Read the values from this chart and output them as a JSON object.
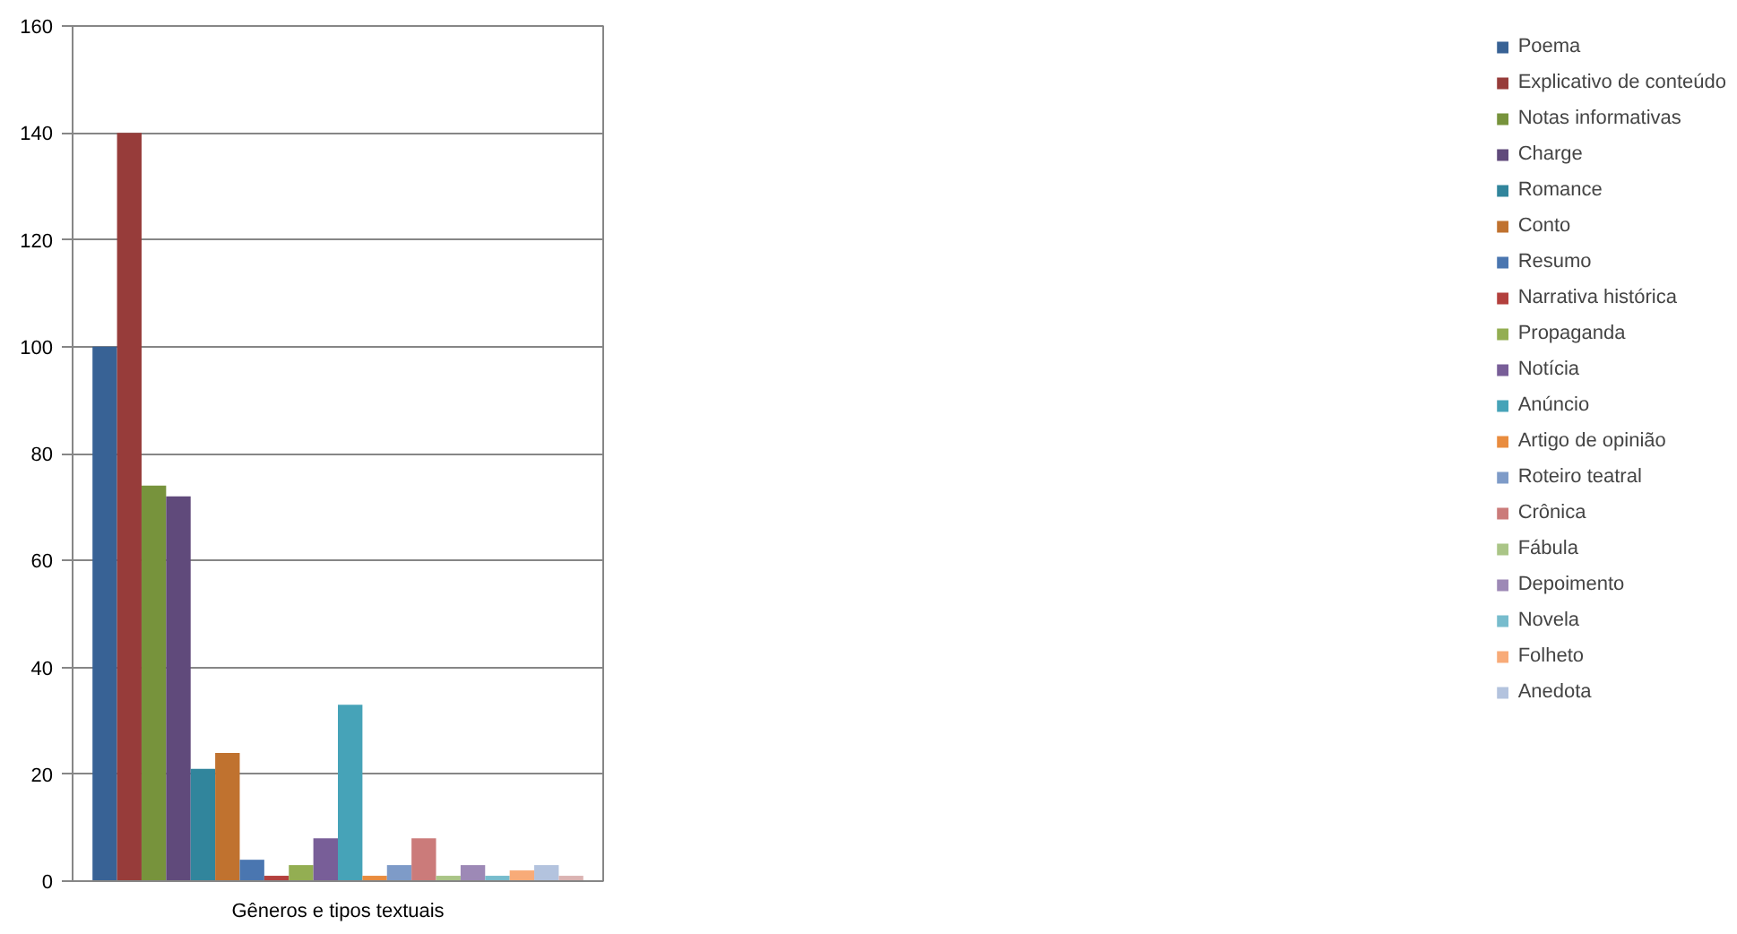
{
  "chart_data": {
    "type": "bar",
    "categories": [
      "Gêneros e tipos textuais"
    ],
    "ylim": [
      0,
      160
    ],
    "yticks": [
      0,
      20,
      40,
      60,
      80,
      100,
      120,
      140,
      160
    ],
    "grid": "y",
    "legend": "right",
    "series": [
      {
        "name": "Poema",
        "color": "#386295",
        "values": [
          100
        ]
      },
      {
        "name": "Explicativo de conteúdo",
        "color": "#973c3a",
        "values": [
          140
        ]
      },
      {
        "name": "Notas informativas",
        "color": "#77933c",
        "values": [
          74
        ]
      },
      {
        "name": "Charge",
        "color": "#604a7b",
        "values": [
          72
        ]
      },
      {
        "name": "Romance",
        "color": "#31859c",
        "values": [
          21
        ]
      },
      {
        "name": "Conto",
        "color": "#c0722f",
        "values": [
          24
        ]
      },
      {
        "name": "Resumo",
        "color": "#4a76b0",
        "values": [
          4
        ]
      },
      {
        "name": "Narrativa histórica",
        "color": "#b3403d",
        "values": [
          1
        ]
      },
      {
        "name": "Propaganda",
        "color": "#93ae52",
        "values": [
          3
        ]
      },
      {
        "name": "Notícia",
        "color": "#785e98",
        "values": [
          8
        ]
      },
      {
        "name": "Anúncio",
        "color": "#46a3b8",
        "values": [
          33
        ]
      },
      {
        "name": "Artigo de opinião",
        "color": "#e98c3e",
        "values": [
          1
        ]
      },
      {
        "name": "Roteiro teatral",
        "color": "#7e9bc8",
        "values": [
          3
        ]
      },
      {
        "name": "Crônica",
        "color": "#cb7b7a",
        "values": [
          8
        ]
      },
      {
        "name": "Fábula",
        "color": "#aac587",
        "values": [
          1
        ]
      },
      {
        "name": "Depoimento",
        "color": "#9d89b6",
        "values": [
          3
        ]
      },
      {
        "name": "Novela",
        "color": "#77bccd",
        "values": [
          1
        ]
      },
      {
        "name": "Folheto",
        "color": "#f8ab78",
        "values": [
          2
        ]
      },
      {
        "name": "Anedota",
        "color": "#b3c3de",
        "values": [
          3
        ]
      },
      {
        "color": "#dbb3b2",
        "values": [
          1
        ]
      }
    ]
  }
}
